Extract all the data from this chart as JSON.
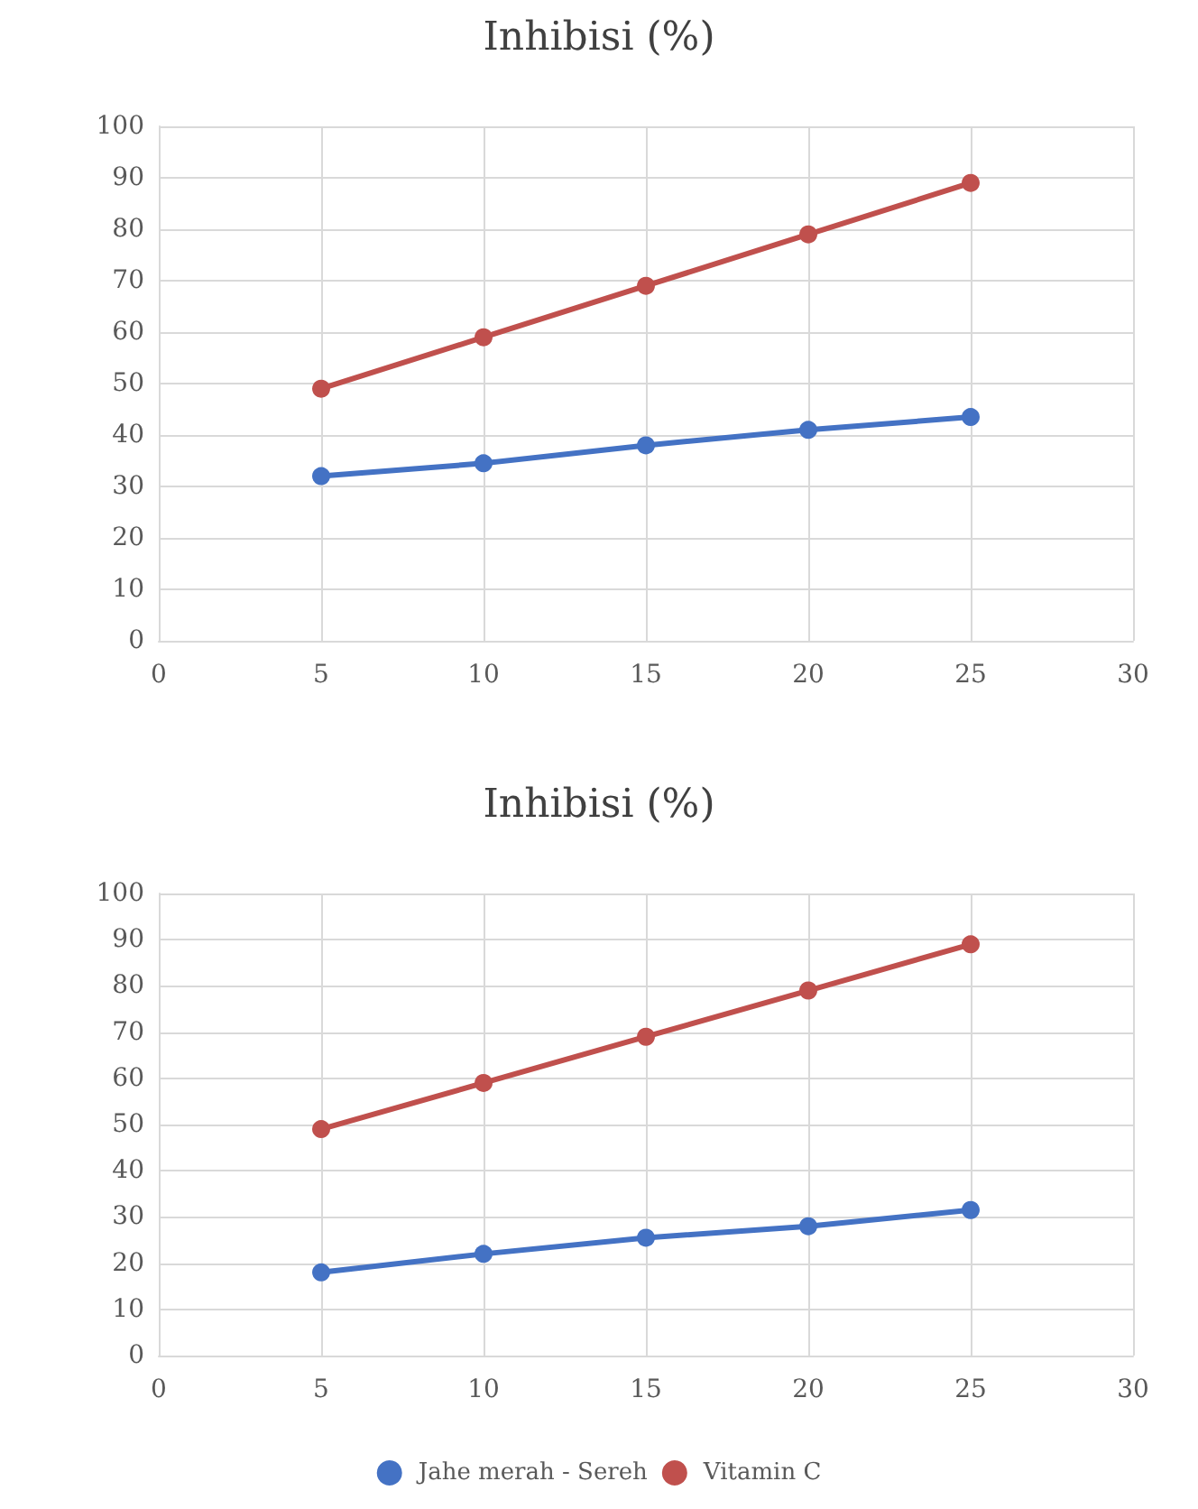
{
  "chart_data": [
    {
      "type": "line",
      "title": "Inhibisi (%)",
      "x": [
        5,
        10,
        15,
        20,
        25
      ],
      "series": [
        {
          "color": "#4472c4",
          "values": [
            32,
            34.5,
            38,
            41,
            43.5
          ]
        },
        {
          "color": "#c0504d",
          "values": [
            49,
            59,
            69,
            79,
            89
          ]
        }
      ],
      "xlim": [
        0,
        30
      ],
      "xticks": [
        0,
        5,
        10,
        15,
        20,
        25,
        30
      ],
      "ylim": [
        0,
        100
      ],
      "yticks": [
        0,
        10,
        20,
        30,
        40,
        50,
        60,
        70,
        80,
        90,
        100
      ],
      "grid": true,
      "marker": "circle",
      "line_style": "solid",
      "legend": false
    },
    {
      "type": "line",
      "title": "Inhibisi (%)",
      "x": [
        5,
        10,
        15,
        20,
        25
      ],
      "series": [
        {
          "name": "Jahe merah - Sereh",
          "color": "#4472c4",
          "values": [
            18,
            22,
            25.5,
            28,
            31.5
          ]
        },
        {
          "name": "Vitamin C",
          "color": "#c0504d",
          "values": [
            49,
            59,
            69,
            79,
            89
          ]
        }
      ],
      "xlim": [
        0,
        30
      ],
      "xticks": [
        0,
        5,
        10,
        15,
        20,
        25,
        30
      ],
      "ylim": [
        0,
        100
      ],
      "yticks": [
        0,
        10,
        20,
        30,
        40,
        50,
        60,
        70,
        80,
        90,
        100
      ],
      "grid": true,
      "marker": "circle",
      "line_style": "solid",
      "legend": "bottom"
    }
  ]
}
